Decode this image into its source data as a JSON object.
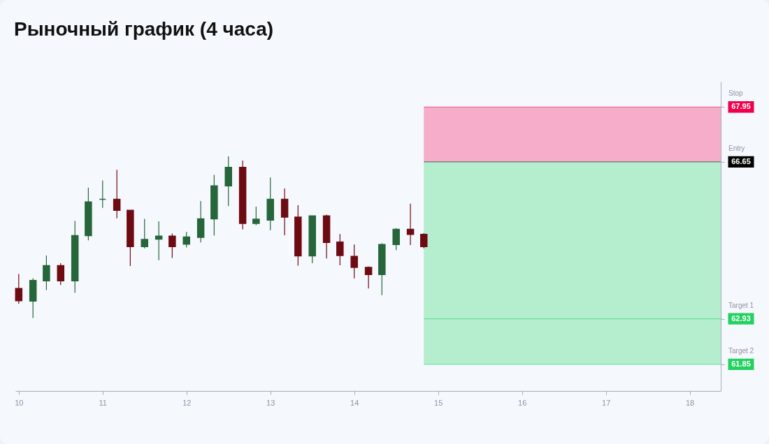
{
  "chart_data": {
    "type": "candlestick",
    "title": "Рыночный график (4 часа)",
    "x": [
      10,
      10.17,
      10.33,
      10.5,
      10.67,
      10.83,
      11,
      11.17,
      11.33,
      11.5,
      11.67,
      11.83,
      12,
      12.17,
      12.33,
      12.5,
      12.67,
      12.83,
      13,
      13.17,
      13.33,
      13.5,
      13.67,
      13.83,
      14,
      14.17,
      14.33,
      14.5,
      14.67,
      14.83
    ],
    "ohlc": [
      [
        63.65,
        63.99,
        63.29,
        63.36
      ],
      [
        63.35,
        63.89,
        62.95,
        63.84
      ],
      [
        63.83,
        64.43,
        63.61,
        64.19
      ],
      [
        64.19,
        64.25,
        63.73,
        63.83
      ],
      [
        63.83,
        65.25,
        63.55,
        64.9
      ],
      [
        64.9,
        66.04,
        64.79,
        65.7
      ],
      [
        65.76,
        66.21,
        65.56,
        65.76
      ],
      [
        65.76,
        66.46,
        65.31,
        65.5
      ],
      [
        65.5,
        65.5,
        64.18,
        64.64
      ],
      [
        64.64,
        65.3,
        64.6,
        64.81
      ],
      [
        64.82,
        65.24,
        64.32,
        64.89
      ],
      [
        64.89,
        64.95,
        64.37,
        64.64
      ],
      [
        64.7,
        64.99,
        64.62,
        64.87
      ],
      [
        64.86,
        65.72,
        64.74,
        65.3
      ],
      [
        65.3,
        66.34,
        64.9,
        66.08
      ],
      [
        66.08,
        66.78,
        65.6,
        66.52
      ],
      [
        66.52,
        66.68,
        65.05,
        65.19
      ],
      [
        65.19,
        65.59,
        65.15,
        65.29
      ],
      [
        65.27,
        66.28,
        65.03,
        65.76
      ],
      [
        65.76,
        66.02,
        64.91,
        65.34
      ],
      [
        65.34,
        65.62,
        64.19,
        64.42
      ],
      [
        64.42,
        65.37,
        64.25,
        65.37
      ],
      [
        65.37,
        65.4,
        64.36,
        64.74
      ],
      [
        64.75,
        64.94,
        64.2,
        64.43
      ],
      [
        64.41,
        64.69,
        63.89,
        64.15
      ],
      [
        64.15,
        64.17,
        63.65,
        63.98
      ],
      [
        63.98,
        64.72,
        63.49,
        64.69
      ],
      [
        64.69,
        65.08,
        64.56,
        65.05
      ],
      [
        65.05,
        65.66,
        64.68,
        64.93
      ],
      [
        64.93,
        64.96,
        64.6,
        64.64
      ]
    ],
    "colors": [
      "#6e0b12",
      "#26663a",
      "#26663a",
      "#6e0b12",
      "#26663a",
      "#26663a",
      "#26663a",
      "#6e0b12",
      "#6e0b12",
      "#26663a",
      "#26663a",
      "#6e0b12",
      "#26663a",
      "#26663a",
      "#26663a",
      "#26663a",
      "#6e0b12",
      "#26663a",
      "#26663a",
      "#6e0b12",
      "#6e0b12",
      "#26663a",
      "#6e0b12",
      "#6e0b12",
      "#6e0b12",
      "#6e0b12",
      "#26663a",
      "#26663a",
      "#6e0b12",
      "#6e0b12"
    ],
    "xlim": [
      9.96,
      18.37
    ],
    "xticks": [
      10,
      11,
      12,
      13,
      14,
      15,
      16,
      17,
      18
    ],
    "ylim": [
      61.22,
      68.55
    ],
    "yticks": [
      61.85,
      62.93,
      66.65,
      67.95
    ],
    "bands": [
      {
        "axis": "y",
        "from": 66.65,
        "to": 67.95,
        "color": "#f5adc9"
      },
      {
        "axis": "y",
        "from": 61.85,
        "to": 66.65,
        "color": "#b4eecf"
      }
    ],
    "ref_lines": [
      {
        "axis": "y",
        "value": 67.95,
        "label": "Stop",
        "color": "#f0004a"
      },
      {
        "axis": "y",
        "value": 66.65,
        "label": "Entry",
        "color": "#000000"
      },
      {
        "axis": "y",
        "value": 62.93,
        "label": "Target 1",
        "color": "#22d160"
      },
      {
        "axis": "y",
        "value": 61.85,
        "label": "Target 2",
        "color": "#22d160"
      }
    ],
    "grid": false
  }
}
